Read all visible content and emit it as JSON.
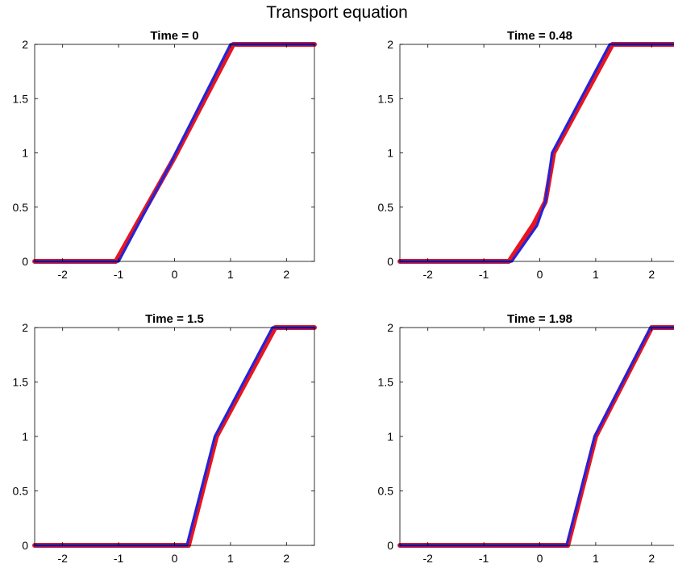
{
  "figure": {
    "title": "Transport equation"
  },
  "colors": {
    "exact": "#e8141e",
    "numerical": "#2424d8",
    "axis": "#000000",
    "background": "#ffffff"
  },
  "chart_data": [
    {
      "type": "line",
      "title": "Time = 0",
      "xlabel": "",
      "ylabel": "",
      "xlim": [
        -2.5,
        2.5
      ],
      "ylim": [
        0,
        2
      ],
      "xticks": [
        -2,
        -1,
        0,
        1,
        2
      ],
      "yticks": [
        0,
        0.5,
        1,
        1.5,
        2
      ],
      "ytick_labels": [
        "0",
        "0.5",
        "1",
        "1.5",
        "2"
      ],
      "grid": false,
      "series": [
        {
          "values_x": [
            -2.5,
            -1.05,
            0.0,
            1.05,
            2.5
          ],
          "values_y": [
            0,
            0,
            0.96,
            2,
            2
          ]
        },
        {
          "values_x": [
            -2.5,
            -1.0,
            -0.05,
            0.0,
            1.0,
            2.5
          ],
          "values_y": [
            0,
            0,
            0.92,
            0.98,
            2,
            2
          ]
        }
      ]
    },
    {
      "type": "line",
      "title": "Time = 0.48",
      "xlabel": "",
      "ylabel": "",
      "xlim": [
        -2.5,
        2.5
      ],
      "ylim": [
        0,
        2
      ],
      "xticks": [
        -2,
        -1,
        0,
        1,
        2
      ],
      "yticks": [
        0,
        0.5,
        1,
        1.5,
        2
      ],
      "ytick_labels": [
        "0",
        "0.5",
        "1",
        "1.5",
        "2"
      ],
      "grid": false,
      "series": [
        {
          "values_x": [
            -2.5,
            -0.55,
            -0.1,
            0.1,
            0.25,
            1.3,
            2.5
          ],
          "values_y": [
            0,
            0,
            0.35,
            0.55,
            1.0,
            2,
            2
          ]
        },
        {
          "values_x": [
            -2.5,
            -0.5,
            -0.05,
            0.1,
            0.22,
            1.25,
            2.5
          ],
          "values_y": [
            0,
            0,
            0.33,
            0.55,
            1.0,
            2,
            2
          ]
        }
      ]
    },
    {
      "type": "line",
      "title": "Time = 1.5",
      "xlabel": "",
      "ylabel": "",
      "xlim": [
        -2.5,
        2.5
      ],
      "ylim": [
        0,
        2
      ],
      "xticks": [
        -2,
        -1,
        0,
        1,
        2
      ],
      "yticks": [
        0,
        0.5,
        1,
        1.5,
        2
      ],
      "ytick_labels": [
        "0",
        "0.5",
        "1",
        "1.5",
        "2"
      ],
      "grid": false,
      "series": [
        {
          "values_x": [
            -2.5,
            0.25,
            0.75,
            1.8,
            2.5
          ],
          "values_y": [
            0,
            0,
            1.0,
            2,
            2
          ]
        },
        {
          "values_x": [
            -2.5,
            0.22,
            0.72,
            1.75,
            2.5
          ],
          "values_y": [
            0,
            0,
            1.0,
            2,
            2
          ]
        }
      ]
    },
    {
      "type": "line",
      "title": "Time = 1.98",
      "xlabel": "",
      "ylabel": "",
      "xlim": [
        -2.5,
        2.5
      ],
      "ylim": [
        0,
        2
      ],
      "xticks": [
        -2,
        -1,
        0,
        1,
        2
      ],
      "yticks": [
        0,
        0.5,
        1,
        1.5,
        2
      ],
      "ytick_labels": [
        "0",
        "0.5",
        "1",
        "1.5",
        "2"
      ],
      "grid": false,
      "series": [
        {
          "values_x": [
            -2.5,
            0.5,
            1.0,
            2.0,
            2.5
          ],
          "values_y": [
            0,
            0,
            1.0,
            2,
            2
          ]
        },
        {
          "values_x": [
            -2.5,
            0.48,
            0.98,
            1.98,
            2.5
          ],
          "values_y": [
            0,
            0,
            1.0,
            2,
            2
          ]
        }
      ]
    }
  ]
}
